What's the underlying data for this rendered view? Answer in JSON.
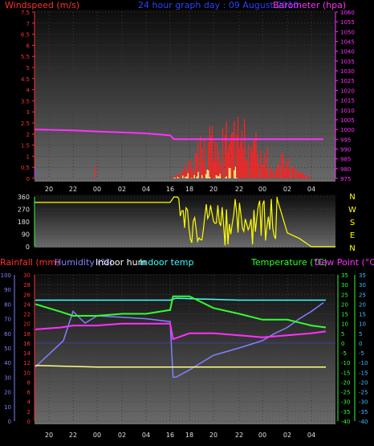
{
  "colors": {
    "wind": "#ff2020",
    "wind_avg": "#ffff80",
    "baro": "#ff30ff",
    "dir": "#ffff00",
    "rain": "#ff2020",
    "humidity": "#8080ff",
    "indoor_hum": "#ffff80",
    "indoor_temp": "#40ffff",
    "temp": "#30ff30",
    "dew": "#ff30ff",
    "axis_left": "#ff3030",
    "axis_right": "#ff30ff",
    "axis_green": "#30ff30",
    "axis_blue": "#8080ff"
  },
  "top_panel": {
    "title_wind": "Windspeed (m/s)",
    "title_center": "24 hour graph day : 09 August 2010",
    "title_baro": "Barometer (hpa)",
    "wind_ticks": [
      "7.5",
      "7",
      "6.5",
      "6",
      "5.5",
      "5",
      "4.5",
      "4",
      "3.5",
      "3",
      "2.5",
      "2",
      "1.5",
      "1",
      "0.5",
      "0"
    ],
    "baro_ticks": [
      "1060",
      "1055",
      "1050",
      "1045",
      "1040",
      "1035",
      "1030",
      "1025",
      "1020",
      "1015",
      "1010",
      "1005",
      "1000",
      "995",
      "990",
      "985",
      "980",
      "975"
    ],
    "time_ticks": [
      "20",
      "22",
      "00",
      "02",
      "04",
      "16",
      "18",
      "20",
      "22",
      "00",
      "02",
      "04"
    ]
  },
  "mid_panel": {
    "dir_ticks": [
      "360",
      "270",
      "180",
      "90",
      "0"
    ],
    "compass": [
      "N",
      "W",
      "S",
      "E",
      "N"
    ]
  },
  "bottom_panel": {
    "labels": {
      "rain": "Rainfall (mm)",
      "humidity": "Humidity (%)",
      "indoor_hum": "Indoor hum",
      "indoor_temp": "Indoor temp",
      "temp": "Temperature (°C)",
      "dew": "Dew Point (°C)"
    },
    "humidity_ticks": [
      "100",
      "90",
      "80",
      "70",
      "60",
      "50",
      "40",
      "30",
      "20",
      "10",
      "0"
    ],
    "rain_ticks": [
      "30",
      "28",
      "26",
      "24",
      "22",
      "20",
      "18",
      "16",
      "14",
      "12",
      "10",
      "8",
      "6",
      "4",
      "2",
      "0"
    ],
    "temp_ticks_a": [
      "35",
      "30",
      "25",
      "20",
      "15",
      "10",
      "5",
      "0",
      "-5",
      "-10",
      "-15",
      "-20",
      "-25",
      "-30",
      "-35",
      "-40"
    ],
    "temp_ticks_b": [
      "35",
      "30",
      "25",
      "20",
      "15",
      "10",
      "5",
      "0",
      "-5",
      "-10",
      "-15",
      "-20",
      "-25",
      "-30",
      "-35",
      "-40"
    ],
    "time_ticks": [
      "20",
      "22",
      "00",
      "02",
      "04",
      "16",
      "18",
      "20",
      "22",
      "00",
      "02",
      "04"
    ]
  },
  "chart_data": [
    {
      "type": "line",
      "title": "24 hour graph day : 09 August 2010",
      "x_ticks": [
        "20",
        "22",
        "00",
        "02",
        "04",
        "16",
        "18",
        "20",
        "22",
        "00",
        "02",
        "04"
      ],
      "series": [
        {
          "name": "Windspeed (m/s)",
          "axis": "left",
          "ylim": [
            0,
            7.5
          ],
          "x": [
            0,
            1,
            2,
            3,
            4,
            5,
            6,
            7,
            8,
            9,
            10,
            11
          ],
          "values": [
            0,
            0,
            0,
            0,
            0,
            0,
            1,
            1.5,
            1.5,
            1,
            0.5,
            0
          ]
        },
        {
          "name": "Barometer (hpa)",
          "axis": "right",
          "ylim": [
            975,
            1060
          ],
          "x": [
            0,
            1,
            2,
            3,
            4,
            5,
            5.2,
            6,
            7,
            8,
            9,
            10,
            11,
            11.5
          ],
          "values": [
            1000,
            999.5,
            999,
            998.5,
            998,
            997,
            995,
            995,
            995,
            995,
            995,
            995,
            995,
            995
          ]
        }
      ]
    },
    {
      "type": "line",
      "ylim": [
        0,
        360
      ],
      "x_ticks": [
        "20",
        "22",
        "00",
        "02",
        "04",
        "16",
        "18",
        "20",
        "22",
        "00",
        "02",
        "04"
      ],
      "series": [
        {
          "name": "Wind direction",
          "x": [
            0,
            5,
            5.3,
            6,
            7,
            8,
            9,
            9.6,
            10,
            10.5,
            11,
            11.6
          ],
          "values": [
            320,
            320,
            360,
            200,
            250,
            150,
            300,
            340,
            100,
            60,
            0,
            0
          ]
        }
      ]
    },
    {
      "type": "line",
      "x_ticks": [
        "20",
        "22",
        "00",
        "02",
        "04",
        "16",
        "18",
        "20",
        "22",
        "00",
        "02",
        "04"
      ],
      "series": [
        {
          "name": "Humidity (%)",
          "axis": "humidity",
          "ylim": [
            0,
            100
          ],
          "x": [
            0,
            0.6,
            1,
            1.5,
            2,
            3,
            4,
            5,
            5.15,
            5.3,
            6,
            7,
            8,
            9,
            9.5,
            10,
            10.5,
            11,
            11.5
          ],
          "values": [
            37,
            55,
            75,
            67,
            72,
            71,
            70,
            68,
            30,
            30,
            35,
            45,
            50,
            55,
            60,
            64,
            70,
            75,
            81
          ]
        },
        {
          "name": "Indoor hum",
          "axis": "humidity",
          "ylim": [
            0,
            100
          ],
          "x": [
            0,
            2,
            4,
            5,
            5.3,
            7,
            8.5,
            10,
            11,
            11.6
          ],
          "values": [
            38,
            37,
            37,
            37,
            37,
            37,
            37,
            37,
            37,
            37
          ]
        },
        {
          "name": "Indoor temp",
          "axis": "temp",
          "ylim": [
            -40,
            35
          ],
          "x": [
            0,
            3,
            5,
            5.3,
            8,
            10,
            11.6
          ],
          "values": [
            22,
            22,
            22,
            23,
            22,
            22,
            22
          ]
        },
        {
          "name": "Temperature (°C)",
          "axis": "temp",
          "ylim": [
            -40,
            35
          ],
          "x": [
            0,
            0.5,
            1,
            2,
            3,
            4,
            5,
            5.15,
            6,
            6.5,
            7,
            8,
            9,
            10,
            11,
            11.6
          ],
          "values": [
            20,
            16,
            14,
            14,
            15,
            15,
            17,
            24,
            24,
            21,
            18,
            15,
            12,
            12,
            9,
            8
          ]
        },
        {
          "name": "Dew Point (°C)",
          "axis": "temp",
          "ylim": [
            -40,
            35
          ],
          "x": [
            0,
            0.5,
            1,
            2,
            3,
            4,
            5,
            5.15,
            6,
            7,
            8,
            9,
            10,
            11,
            11.6
          ],
          "values": [
            7,
            8,
            9,
            9,
            10,
            10,
            10,
            2,
            5,
            5,
            4,
            3,
            4,
            5,
            6
          ]
        }
      ]
    }
  ]
}
